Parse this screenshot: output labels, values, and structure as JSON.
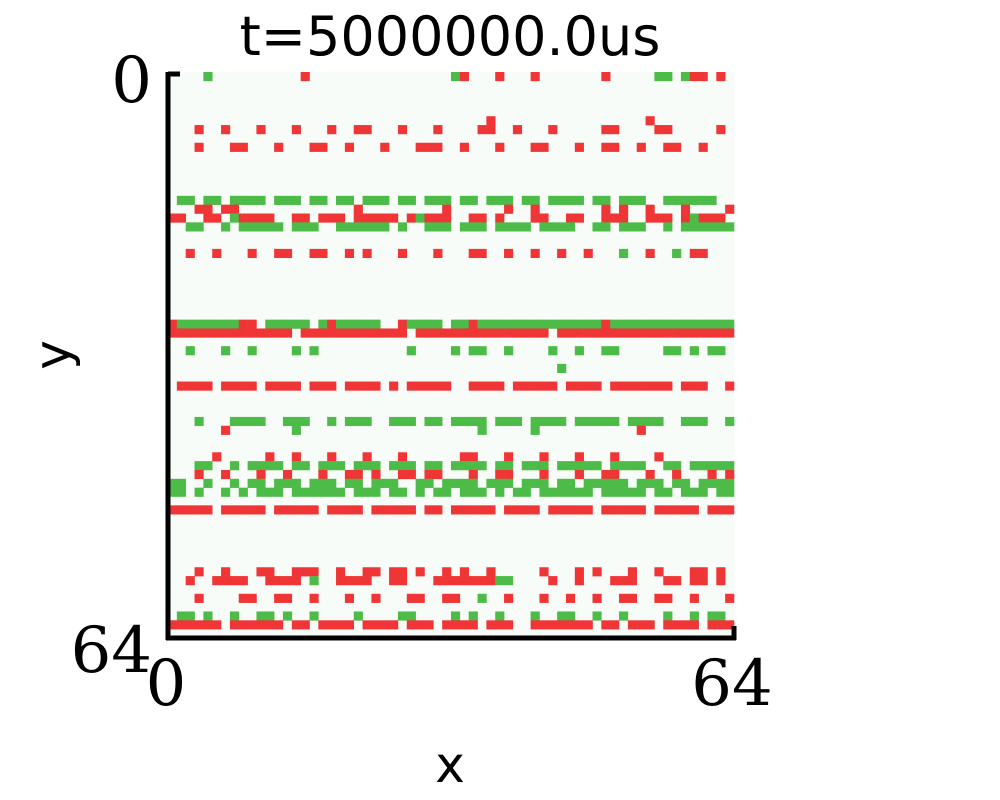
{
  "chart_data": {
    "type": "heatmap",
    "title": "t=5000000.0us",
    "xlabel": "x",
    "ylabel": "y",
    "xlim": [
      0,
      64
    ],
    "ylim": [
      0,
      64
    ],
    "x_ticks": [
      "0",
      "64"
    ],
    "y_ticks": [
      "0",
      "64"
    ],
    "y_inverted": true,
    "grid": false,
    "grid_size": [
      64,
      64
    ],
    "colors": {
      "background": "#f8fcf8",
      "red": "#ef3535",
      "green": "#4cbb47",
      "axis": "#000000"
    },
    "legend": "Row-major 64 rows (y=0 top). '.' = empty, 'R' = red cell, 'G' = green cell.",
    "rows": [
      "....G..........R................GR...R...R.......R.....GG.GRR.R.",
      "................................................................",
      "................................................................",
      "................................................................",
      "................................................................",
      "....................................R.................R.........",
      "...R..R...R...R...R..RR...R...R....RR..R...R.....RR....RR.....R.",
      "................................................................",
      "...R...RR...R...RR..R...R...RRR..R...R...RR...R..RR..R..RR..R...",
      "................................................................",
      "................................................................",
      "................................................................",
      "................................................................",
      "................................................................",
      ".GG.GG.GGGG.GGG.GG.GG.GGG.GG.GGG.GG.GGG.GG.GGGG.GG.GGG..GGGGGG..",
      "...RR.RR.............R.........R......R..R.......R.R..R...R....R",
      "RR..RR.GRRRR..RR.RRR.RRRRR.RGRRR..RR.R...RR..RR..RRR..RRR.RGRRR.",
      "..GG..G.GGGGG.GGG..GGGGGG.G..GGG.GGG.GGGG.GGGG..GG.GGG..G.GGGGGG",
      "................................................................",
      "................................................................",
      "..R..R...R..RR..RR..R.R...R...R...RR..R..R..R..R...G..R..G.RR...",
      "................................................................",
      "................................................................",
      "................................................................",
      "................................................................",
      "................................................................",
      "................................................................",
      "................................................................",
      "RGGGGGGGRR.GGGGG.GRGGGGG..RGGGG.GGRGGGGGGGGGGGGGGRGGGGGGGGGGGGGG",
      "RRRRRRRRRRRRRR.RRRRRRRRRRRR.RRRRRRRRRRRRRRR.RRRRRRRRRRRRRRRRRRRR",
      "................................................................",
      "..G...G..G....G.G..........G....G.GG..G....G..G..GG.....GG.G.GG.",
      "................................................................",
      "............................................G...................",
      "................................................................",
      ".RRRR.RRRR.RRRR.RRR.RRRR.R.RRRRR..RRRR.RRRRR.RRRR.RRRRRRR.RRR..RR",
      "................................................................",
      "................................................................",
      "................................................................",
      "...G...GGGG..GGG..G.GGG..GGG.GG.GGGG.GGG.GGGG.GGGGG.GGGG..GGG..G",
      "......R.......G....................G.....G...........R.........",
      "................................................................",
      "................................................................",
      ".....R.....R..R...R...R...R......RR...R...R...R...R....R........",
      "...GG..G.GGGG.GG.GGG.GGG.GGG.GG.GGGG.GG.GGG.GGGGG.GGGG..GG.GGGGG",
      "...R..R...R..R...R..RR.R..RR.RR...R..RR...R...R..RR...R..R...R.R",
      "GG..G..G.GG.GGG.GGG.GG.GGG..GG.GGGG.GGG.GGG.GG.GGGGG.GGG.GG.GGGG",
      "GG.G..G.G.GGG.GGGGGG.GGG.GG.G.GG.GGG.G.GG.GGGGGG.GGGGG.GG.GGG.GG",
      "................................................................",
      "RRRRR.RRRRR.RRRRR.RRRR.RRRRR.RR.RRRRR.RRRR.RRRRR.RRRRR.RRRRR.RRR",
      "................................................................",
      "................................................................",
      "................................................................",
      "................................................................",
      "................................................................",
      "................................................................",
      "...R..R...RR..RRR..R..RR.RR.R..R.R..R.....R...R.R...R..R...RR.R.",
      "..R..RRRR..RRRR.G..RRRR..RR...RRRRRRRGG....R..R...RRR...RR.RR.R.",
      "................................................................",
      "...R....RR..RR..R...R..R...RR..RR..G..R...R..R..R..RR..RR..R...R",
      "................................................................",
      ".GG.G..G..GG.G..G....G....GG....G.G..G...G..GG..G..G....G..G.GG.",
      "RRRRRR.RRRRRR.RR.RRRR.RRRR.RRR.RRRR.RRR..RRRRRRR.RR.RRR.RRRR.RRR",
      "................................................................"
    ]
  }
}
